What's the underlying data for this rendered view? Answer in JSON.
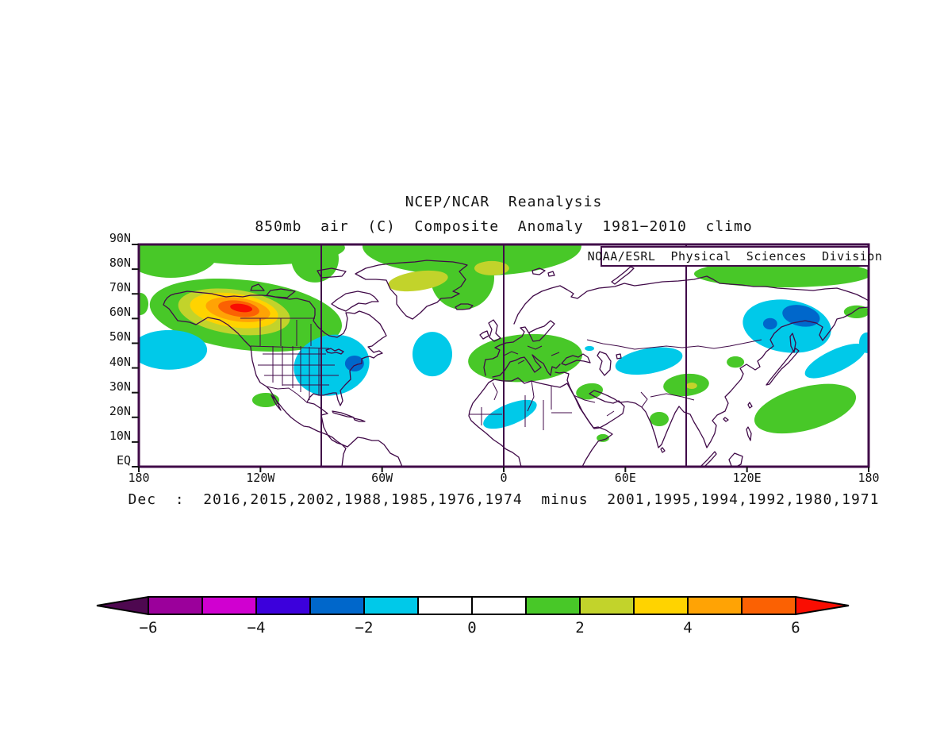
{
  "titles": {
    "line1": "NCEP/NCAR  Reanalysis",
    "line2": "850mb  air  (C)  Composite  Anomaly  1981−2010  climo"
  },
  "credit": "NOAA/ESRL  Physical  Sciences  Division",
  "caption": "Dec  :  2016,2015,2002,1988,1985,1976,1974  minus  2001,1995,1994,1992,1980,1971",
  "colors": {
    "outline": "#400a48",
    "text": "#141414",
    "colorbar_border": "#000000"
  },
  "axes": {
    "lat_ticks": [
      {
        "label": "90N",
        "lat": 90
      },
      {
        "label": "80N",
        "lat": 80
      },
      {
        "label": "70N",
        "lat": 70
      },
      {
        "label": "60N",
        "lat": 60
      },
      {
        "label": "50N",
        "lat": 50
      },
      {
        "label": "40N",
        "lat": 40
      },
      {
        "label": "30N",
        "lat": 30
      },
      {
        "label": "20N",
        "lat": 20
      },
      {
        "label": "10N",
        "lat": 10
      },
      {
        "label": "EQ",
        "lat": 0
      }
    ],
    "lon_ticks": [
      {
        "label": "180",
        "lon": -180
      },
      {
        "label": "120W",
        "lon": -120
      },
      {
        "label": "60W",
        "lon": -60
      },
      {
        "label": "0",
        "lon": 0
      },
      {
        "label": "60E",
        "lon": 60
      },
      {
        "label": "120E",
        "lon": 120
      },
      {
        "label": "180",
        "lon": 180
      }
    ]
  },
  "colorbar": {
    "units": "C",
    "tick_labels": [
      {
        "label": "−6",
        "value": -6
      },
      {
        "label": "−4",
        "value": -4
      },
      {
        "label": "−2",
        "value": -2
      },
      {
        "label": "0",
        "value": 0
      },
      {
        "label": "2",
        "value": 2
      },
      {
        "label": "4",
        "value": 4
      },
      {
        "label": "6",
        "value": 6
      }
    ],
    "cells": [
      {
        "min": -99,
        "max": -6,
        "color": "#4e0850",
        "arrow": "left"
      },
      {
        "min": -6,
        "max": -5,
        "color": "#9b009b"
      },
      {
        "min": -5,
        "max": -4,
        "color": "#d000d0"
      },
      {
        "min": -4,
        "max": -3,
        "color": "#3c00dc"
      },
      {
        "min": -3,
        "max": -2,
        "color": "#0067cb"
      },
      {
        "min": -2,
        "max": -1,
        "color": "#00c9e9"
      },
      {
        "min": -1,
        "max": 0,
        "color": "#ffffff"
      },
      {
        "min": 0,
        "max": 1,
        "color": "#ffffff"
      },
      {
        "min": 1,
        "max": 2,
        "color": "#48c828"
      },
      {
        "min": 2,
        "max": 3,
        "color": "#c2d32b"
      },
      {
        "min": 3,
        "max": 4,
        "color": "#ffd300"
      },
      {
        "min": 4,
        "max": 5,
        "color": "#ffa305"
      },
      {
        "min": 5,
        "max": 6,
        "color": "#fb6103"
      },
      {
        "min": 6,
        "max": 99,
        "color": "#f90d02",
        "arrow": "right"
      }
    ]
  },
  "chart_data": {
    "type": "heatmap",
    "projection": "equirectangular",
    "lon_range": [
      -180,
      180
    ],
    "lat_range": [
      0,
      90
    ],
    "variable": "850mb air temperature composite anomaly (C)",
    "climatology": "1981-2010",
    "month": "Dec",
    "composite_plus_years": [
      2016,
      2015,
      2002,
      1988,
      1985,
      1976,
      1974
    ],
    "composite_minus_years": [
      2001,
      1995,
      1994,
      1992,
      1980,
      1971
    ],
    "contour_interval": 1,
    "features": [
      {
        "name": "arctic-band-west-a",
        "value": 1.5,
        "lon": -164.3,
        "lat": 86.8,
        "rx_deg": 23.5,
        "ry_deg": 10.3,
        "rot": 0
      },
      {
        "name": "arctic-band-west-b",
        "value": 1.5,
        "lon": -121.3,
        "lat": 88.7,
        "rx_deg": 43.0,
        "ry_deg": 7.1,
        "rot": 0
      },
      {
        "name": "arctic-band-west-c",
        "value": 1.5,
        "lon": -93.1,
        "lat": 84.2,
        "rx_deg": 11.7,
        "ry_deg": 9.6,
        "rot": 0
      },
      {
        "name": "arctic-band-greenland",
        "value": 1.5,
        "lon": -15.7,
        "lat": 89.4,
        "rx_deg": 54.0,
        "ry_deg": 12.2,
        "rot": 0
      },
      {
        "name": "greenland-lobe",
        "value": 1.5,
        "lon": -20.4,
        "lat": 76.5,
        "rx_deg": 15.7,
        "ry_deg": 12.9,
        "rot": 0
      },
      {
        "name": "nw-greenland-plus2",
        "value": 2.5,
        "lon": -42.3,
        "lat": 75.2,
        "rx_deg": 14.9,
        "ry_deg": 3.9,
        "rot": -8
      },
      {
        "name": "svalbard-plus2",
        "value": 2.5,
        "lon": -5.9,
        "lat": 80.4,
        "rx_deg": 8.6,
        "ry_deg": 2.9,
        "rot": 0
      },
      {
        "name": "arctic-band-siberia",
        "value": 1.5,
        "lon": 137.7,
        "lat": 78.1,
        "rx_deg": 43.8,
        "ry_deg": 5.5,
        "rot": 0
      },
      {
        "name": "siberia-band-wrap",
        "value": 1.5,
        "lon": -179.2,
        "lat": 65.9,
        "rx_deg": 3.9,
        "ry_deg": 4.5,
        "rot": 0
      },
      {
        "name": "alaska-plus1",
        "value": 1.5,
        "lon": -127.2,
        "lat": 61.4,
        "rx_deg": 47.7,
        "ry_deg": 14.1,
        "rot": 7
      },
      {
        "name": "alaska-plus2",
        "value": 2.5,
        "lon": -133.0,
        "lat": 62.7,
        "rx_deg": 27.8,
        "ry_deg": 9.0,
        "rot": 8
      },
      {
        "name": "alaska-plus3",
        "value": 3.5,
        "lon": -133.0,
        "lat": 63.3,
        "rx_deg": 21.9,
        "ry_deg": 6.8,
        "rot": 8
      },
      {
        "name": "alaska-plus4",
        "value": 4.5,
        "lon": -131.1,
        "lat": 63.6,
        "rx_deg": 16.0,
        "ry_deg": 4.8,
        "rot": 8
      },
      {
        "name": "alaska-plus5",
        "value": 5.5,
        "lon": -130.7,
        "lat": 64.0,
        "rx_deg": 10.2,
        "ry_deg": 3.2,
        "rot": 8
      },
      {
        "name": "alaska-plus6-core",
        "value": 6.5,
        "lon": -129.5,
        "lat": 64.3,
        "rx_deg": 5.5,
        "ry_deg": 1.6,
        "rot": 8
      },
      {
        "name": "baja-offshore-plus1",
        "value": 1.5,
        "lon": -117.4,
        "lat": 27.0,
        "rx_deg": 6.7,
        "ry_deg": 2.9,
        "rot": 0
      },
      {
        "name": "europe-plus1",
        "value": 1.5,
        "lon": 10.6,
        "lat": 44.0,
        "rx_deg": 28.2,
        "ry_deg": 9.6,
        "rot": -4
      },
      {
        "name": "iraq-plus1",
        "value": 1.5,
        "lon": 42.3,
        "lat": 30.5,
        "rx_deg": 6.7,
        "ry_deg": 3.2,
        "rot": -10
      },
      {
        "name": "tibet-plus1",
        "value": 1.5,
        "lon": 90.0,
        "lat": 33.1,
        "rx_deg": 11.3,
        "ry_deg": 4.5,
        "rot": -5
      },
      {
        "name": "tibet-plus2-core",
        "value": 2.5,
        "lon": 92.7,
        "lat": 32.8,
        "rx_deg": 2.7,
        "ry_deg": 1.3,
        "rot": 0
      },
      {
        "name": "mongolia-plus1",
        "value": 1.5,
        "lon": 114.3,
        "lat": 42.4,
        "rx_deg": 4.3,
        "ry_deg": 2.3,
        "rot": 0
      },
      {
        "name": "india-plus1",
        "value": 1.5,
        "lon": 76.7,
        "lat": 19.3,
        "rx_deg": 4.7,
        "ry_deg": 2.9,
        "rot": 0
      },
      {
        "name": "horn-africa-plus1",
        "value": 1.5,
        "lon": 48.9,
        "lat": 11.6,
        "rx_deg": 3.1,
        "ry_deg": 1.6,
        "rot": 0
      },
      {
        "name": "west-pacific-plus1",
        "value": 1.5,
        "lon": 148.7,
        "lat": 23.5,
        "rx_deg": 25.8,
        "ry_deg": 8.7,
        "rot": -15
      },
      {
        "name": "kamchatka-east-plus1",
        "value": 1.5,
        "lon": 174.1,
        "lat": 62.7,
        "rx_deg": 6.3,
        "ry_deg": 2.6,
        "rot": 0
      },
      {
        "name": "ne-pacific-minus1",
        "value": -1.5,
        "lon": -165.1,
        "lat": 47.3,
        "rx_deg": 18.8,
        "ry_deg": 8.0,
        "rot": 0
      },
      {
        "name": "pacific-wrap-minus1",
        "value": -1.5,
        "lon": 179.2,
        "lat": 50.2,
        "rx_deg": 3.9,
        "ry_deg": 4.2,
        "rot": 0
      },
      {
        "name": "central-us-minus1",
        "value": -1.5,
        "lon": -84.9,
        "lat": 41.1,
        "rx_deg": 18.8,
        "ry_deg": 12.2,
        "rot": -12
      },
      {
        "name": "ne-us-minus2-core",
        "value": -2.5,
        "lon": -73.6,
        "lat": 41.8,
        "rx_deg": 4.7,
        "ry_deg": 3.2,
        "rot": 0
      },
      {
        "name": "mid-atlantic-minus1",
        "value": -1.5,
        "lon": -35.2,
        "lat": 45.6,
        "rx_deg": 9.8,
        "ry_deg": 9.0,
        "rot": 0
      },
      {
        "name": "kazakh-minus1",
        "value": -1.5,
        "lon": 71.6,
        "lat": 42.8,
        "rx_deg": 16.8,
        "ry_deg": 5.1,
        "rot": -10
      },
      {
        "name": "caucasus-minus1-dot",
        "value": -1.5,
        "lon": 42.3,
        "lat": 47.9,
        "rx_deg": 2.3,
        "ry_deg": 1.0,
        "rot": 0
      },
      {
        "name": "sahara-minus1",
        "value": -1.5,
        "lon": 3.1,
        "lat": 21.2,
        "rx_deg": 14.1,
        "ry_deg": 4.2,
        "rot": -22
      },
      {
        "name": "ne-siberia-minus1",
        "value": -1.5,
        "lon": 139.7,
        "lat": 56.9,
        "rx_deg": 21.9,
        "ry_deg": 10.6,
        "rot": 8
      },
      {
        "name": "ne-siberia-tail",
        "value": -1.5,
        "lon": 163.6,
        "lat": 42.8,
        "rx_deg": 16.4,
        "ry_deg": 4.5,
        "rot": -25
      },
      {
        "name": "ne-siberia-minus2",
        "value": -2.5,
        "lon": 146.7,
        "lat": 61.1,
        "rx_deg": 9.4,
        "ry_deg": 4.2,
        "rot": 12
      },
      {
        "name": "ne-siberia-minus2-b",
        "value": -2.5,
        "lon": 131.4,
        "lat": 57.9,
        "rx_deg": 3.5,
        "ry_deg": 2.3,
        "rot": 0
      }
    ]
  }
}
